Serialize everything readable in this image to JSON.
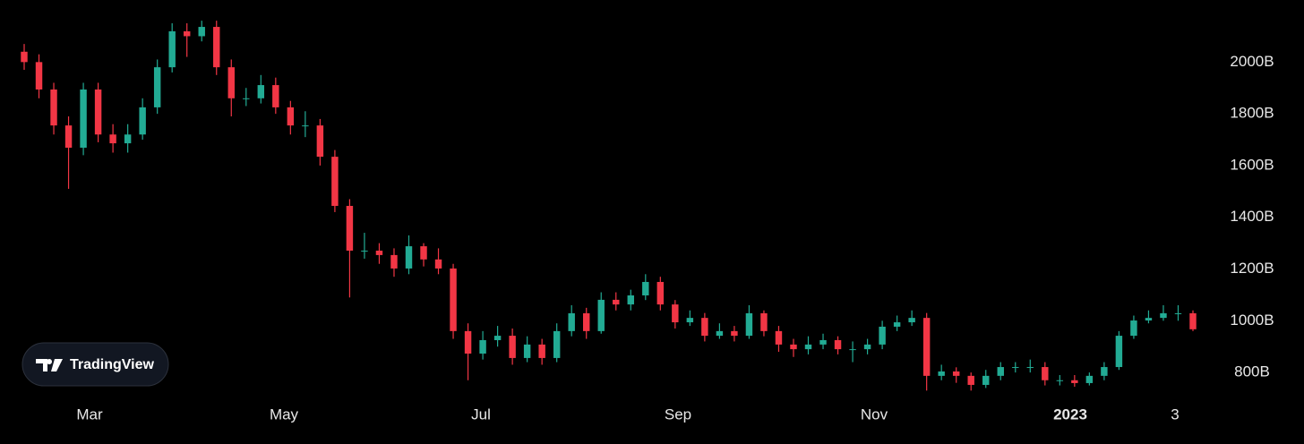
{
  "chart_data": {
    "type": "candlestick",
    "up_color": "#22ab94",
    "down_color": "#f23645",
    "ylim": [
      700,
      2240
    ],
    "yticks": [
      {
        "value": 800,
        "label": "800B"
      },
      {
        "value": 1000,
        "label": "1000B"
      },
      {
        "value": 1200,
        "label": "1200B"
      },
      {
        "value": 1400,
        "label": "1400B"
      },
      {
        "value": 1600,
        "label": "1600B"
      },
      {
        "value": 1800,
        "label": "1800B"
      },
      {
        "value": 2000,
        "label": "2000B"
      }
    ],
    "xtick_labels": [
      "Mar",
      "May",
      "Jul",
      "Sep",
      "Nov",
      "2023",
      "3"
    ],
    "grid": false,
    "watermark": "TradingView",
    "open": [
      2040,
      2000,
      1894,
      1755,
      1669,
      1894,
      1720,
      1686,
      1720,
      1825,
      1980,
      2119,
      2100,
      2136,
      1980,
      1860,
      1860,
      1911,
      1825,
      1755,
      1755,
      1634,
      1444,
      1271,
      1271,
      1254,
      1202,
      1288,
      1237,
      1202,
      960,
      873,
      925,
      942,
      856,
      908,
      856,
      960,
      1029,
      960,
      1081,
      1063,
      1098,
      1150,
      1063,
      994,
      1011,
      942,
      960,
      942,
      1029,
      960,
      908,
      890,
      908,
      925,
      890,
      890,
      908,
      977,
      994,
      1011,
      787,
      804,
      787,
      752,
      787,
      821,
      821,
      821,
      770,
      770,
      759,
      787,
      821,
      942,
      1001,
      1011,
      1029,
      1029
    ],
    "high": [
      2070,
      2030,
      1920,
      1790,
      1920,
      1920,
      1760,
      1760,
      1860,
      2010,
      2150,
      2150,
      2160,
      2160,
      2010,
      1900,
      1950,
      1940,
      1850,
      1810,
      1780,
      1660,
      1470,
      1340,
      1300,
      1280,
      1330,
      1300,
      1280,
      1220,
      990,
      960,
      980,
      970,
      940,
      930,
      990,
      1060,
      1050,
      1110,
      1110,
      1120,
      1180,
      1170,
      1080,
      1040,
      1030,
      990,
      980,
      1060,
      1040,
      980,
      930,
      940,
      950,
      940,
      920,
      930,
      1000,
      1020,
      1040,
      1030,
      830,
      820,
      800,
      810,
      840,
      840,
      850,
      840,
      790,
      790,
      800,
      840,
      960,
      1020,
      1040,
      1060,
      1060,
      1040
    ],
    "low": [
      1970,
      1860,
      1720,
      1510,
      1640,
      1690,
      1650,
      1650,
      1700,
      1800,
      1960,
      2020,
      2080,
      1950,
      1790,
      1830,
      1840,
      1800,
      1720,
      1710,
      1600,
      1420,
      1090,
      1240,
      1220,
      1170,
      1180,
      1210,
      1180,
      930,
      770,
      850,
      900,
      830,
      840,
      830,
      840,
      940,
      930,
      950,
      1040,
      1040,
      1080,
      1040,
      970,
      980,
      920,
      930,
      920,
      930,
      940,
      880,
      860,
      870,
      890,
      870,
      840,
      870,
      890,
      960,
      980,
      730,
      770,
      760,
      730,
      740,
      770,
      800,
      800,
      750,
      750,
      745,
      750,
      770,
      810,
      930,
      990,
      1000,
      1000,
      960
    ],
    "close": [
      2000,
      1894,
      1755,
      1669,
      1894,
      1720,
      1686,
      1720,
      1825,
      1980,
      2119,
      2100,
      2136,
      1980,
      1860,
      1860,
      1911,
      1825,
      1755,
      1755,
      1634,
      1444,
      1271,
      1271,
      1254,
      1202,
      1288,
      1237,
      1202,
      960,
      873,
      925,
      942,
      856,
      908,
      856,
      960,
      1029,
      960,
      1081,
      1063,
      1098,
      1150,
      1063,
      994,
      1011,
      942,
      960,
      942,
      1029,
      960,
      908,
      890,
      908,
      925,
      890,
      890,
      908,
      977,
      994,
      1011,
      787,
      804,
      787,
      752,
      787,
      821,
      821,
      821,
      770,
      770,
      759,
      787,
      821,
      942,
      1001,
      1011,
      1029,
      1029,
      967
    ]
  }
}
